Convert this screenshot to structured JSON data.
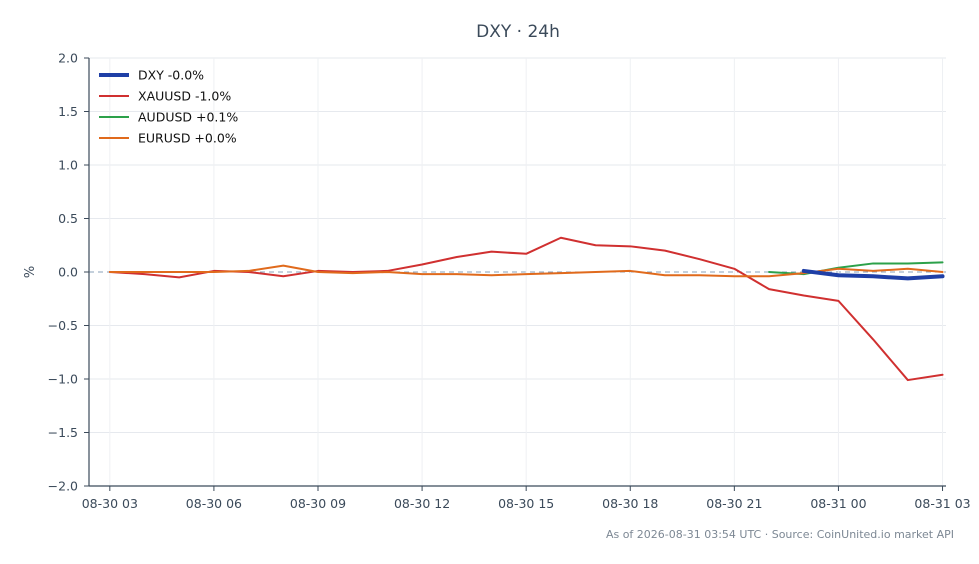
{
  "chart_data": {
    "type": "line",
    "title": "DXY · 24h",
    "xlabel": "",
    "ylabel": "%",
    "ylim": [
      -2.0,
      2.0
    ],
    "yticks": [
      2.0,
      1.5,
      1.0,
      0.5,
      0.0,
      -0.5,
      -1.0,
      -1.5,
      -2.0
    ],
    "ytick_labels": [
      "2.0",
      "1.5",
      "1.0",
      "0.5",
      "0.0",
      "−0.5",
      "−1.0",
      "−1.5",
      "−2.0"
    ],
    "xlim": [
      2.4,
      27.1
    ],
    "xticks": [
      3,
      6,
      9,
      12,
      15,
      18,
      21,
      24,
      27
    ],
    "xtick_labels": [
      "08-30 03",
      "08-30 06",
      "08-30 09",
      "08-30 12",
      "08-30 15",
      "08-30 18",
      "08-30 21",
      "08-31 00",
      "08-31 03"
    ],
    "grid": true,
    "zero_line": "dashed",
    "legend_position": "top-left",
    "series": [
      {
        "name": "DXY -0.0%",
        "color": "#1f3fa6",
        "width": 4,
        "x": [
          23,
          24,
          25,
          26,
          27
        ],
        "y": [
          0.01,
          -0.03,
          -0.04,
          -0.06,
          -0.04
        ]
      },
      {
        "name": "XAUUSD -1.0%",
        "color": "#d03030",
        "width": 2,
        "x": [
          3,
          4,
          5,
          6,
          7,
          8,
          9,
          10,
          11,
          12,
          13,
          14,
          15,
          16,
          17,
          18,
          19,
          20,
          21,
          22,
          23,
          24,
          25,
          26,
          27
        ],
        "y": [
          0.0,
          -0.02,
          -0.05,
          0.01,
          0.0,
          -0.04,
          0.01,
          0.0,
          0.01,
          0.07,
          0.14,
          0.19,
          0.17,
          0.32,
          0.25,
          0.24,
          0.2,
          0.12,
          0.03,
          -0.16,
          -0.22,
          -0.27,
          -0.63,
          -1.01,
          -0.96
        ]
      },
      {
        "name": "AUDUSD +0.1%",
        "color": "#2ca14a",
        "width": 2,
        "x": [
          22,
          23,
          24,
          25,
          26,
          27
        ],
        "y": [
          0.0,
          -0.02,
          0.04,
          0.08,
          0.08,
          0.09
        ]
      },
      {
        "name": "EURUSD +0.0%",
        "color": "#e06a1c",
        "width": 2,
        "x": [
          3,
          4,
          5,
          6,
          7,
          8,
          9,
          10,
          11,
          12,
          13,
          14,
          15,
          16,
          17,
          18,
          19,
          20,
          21,
          22,
          23,
          24,
          25,
          26,
          27
        ],
        "y": [
          0.0,
          0.0,
          0.0,
          0.0,
          0.01,
          0.06,
          0.0,
          -0.01,
          0.0,
          -0.02,
          -0.02,
          -0.03,
          -0.02,
          -0.01,
          0.0,
          0.01,
          -0.03,
          -0.03,
          -0.04,
          -0.04,
          -0.01,
          0.03,
          0.01,
          0.03,
          0.0
        ]
      }
    ]
  },
  "footer": {
    "text": "As of 2026-08-31 03:54 UTC · Source: CoinUnited.io market API"
  }
}
